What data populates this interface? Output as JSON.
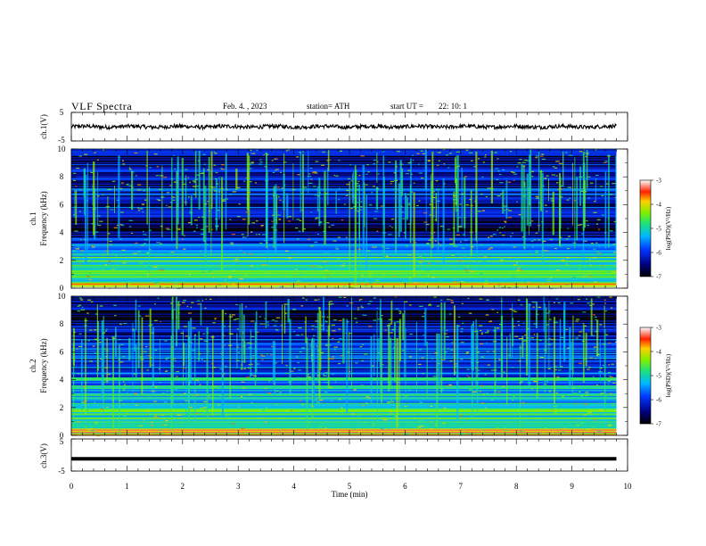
{
  "header": {
    "title": "VLF  Spectra",
    "date": "Feb. 4.  , 2023",
    "station": "station= ATH",
    "start_label": "start  UT  =",
    "start_value": "22: 10: 1"
  },
  "chart_data": [
    {
      "type": "line",
      "ylabel": "ch.1(V)",
      "ylim": [
        -5,
        5
      ],
      "yticks": [
        "5",
        "-5"
      ],
      "xlim": [
        0,
        10
      ],
      "color": "#000000",
      "noise_amplitude": 0.7
    },
    {
      "type": "heatmap",
      "ylabel_line1": "ch.1",
      "ylabel_line2": "Frequency  (kHz)",
      "ylim": [
        0,
        10
      ],
      "yticks": [
        "0",
        "2",
        "4",
        "6",
        "8",
        "10"
      ],
      "xlim": [
        0,
        10
      ],
      "data_xmax": 9.8,
      "colorbar": {
        "label": "log(PSD)(V²/Hz)",
        "range": [
          -7,
          -3
        ],
        "ticks": [
          "-3",
          "-4",
          "-5",
          "-6",
          "-7"
        ]
      },
      "bands": [
        {
          "range_khz": [
            0,
            0.4
          ],
          "level": -3.6
        },
        {
          "range_khz": [
            0.4,
            1.4
          ],
          "level": -4.8
        },
        {
          "range_khz": [
            1.4,
            2.5
          ],
          "level": -5.0
        },
        {
          "range_khz": [
            2.5,
            3.3
          ],
          "level": -5.7
        },
        {
          "range_khz": [
            3.3,
            4.0
          ],
          "level": -6.2
        },
        {
          "range_khz": [
            4.0,
            5.0
          ],
          "level": -6.8
        },
        {
          "range_khz": [
            5.0,
            7.2
          ],
          "level": -6.2
        },
        {
          "range_khz": [
            7.2,
            10
          ],
          "level": -6.4
        }
      ]
    },
    {
      "type": "heatmap",
      "ylabel_line1": "ch.2",
      "ylabel_line2": "Frequency  (kHz)",
      "ylim": [
        0,
        10
      ],
      "yticks": [
        "0",
        "2",
        "4",
        "6",
        "8",
        "10"
      ],
      "xlim": [
        0,
        10
      ],
      "data_xmax": 9.8,
      "colorbar": {
        "label": "log(PSD)(V²/Hz)",
        "range": [
          -7,
          -3
        ],
        "ticks": [
          "-3",
          "-4",
          "-5",
          "-6",
          "-7"
        ]
      },
      "bands": [
        {
          "range_khz": [
            0,
            0.5
          ],
          "level": -4.0
        },
        {
          "range_khz": [
            0.5,
            2.4
          ],
          "level": -4.9
        },
        {
          "range_khz": [
            2.4,
            4.2
          ],
          "level": -5.3
        },
        {
          "range_khz": [
            4.2,
            7.0
          ],
          "level": -6.0
        },
        {
          "range_khz": [
            7.0,
            10
          ],
          "level": -6.5
        }
      ]
    },
    {
      "type": "line",
      "ylabel": "ch.3(V)",
      "ylim": [
        -5,
        5
      ],
      "yticks": [
        "5",
        "-5"
      ],
      "xlim": [
        0,
        10
      ],
      "xlabel": "Time  (min)",
      "xticks": [
        "0",
        "1",
        "2",
        "3",
        "4",
        "5",
        "6",
        "7",
        "8",
        "9",
        "10"
      ],
      "color": "#000000",
      "constant_value": -1.2
    }
  ]
}
